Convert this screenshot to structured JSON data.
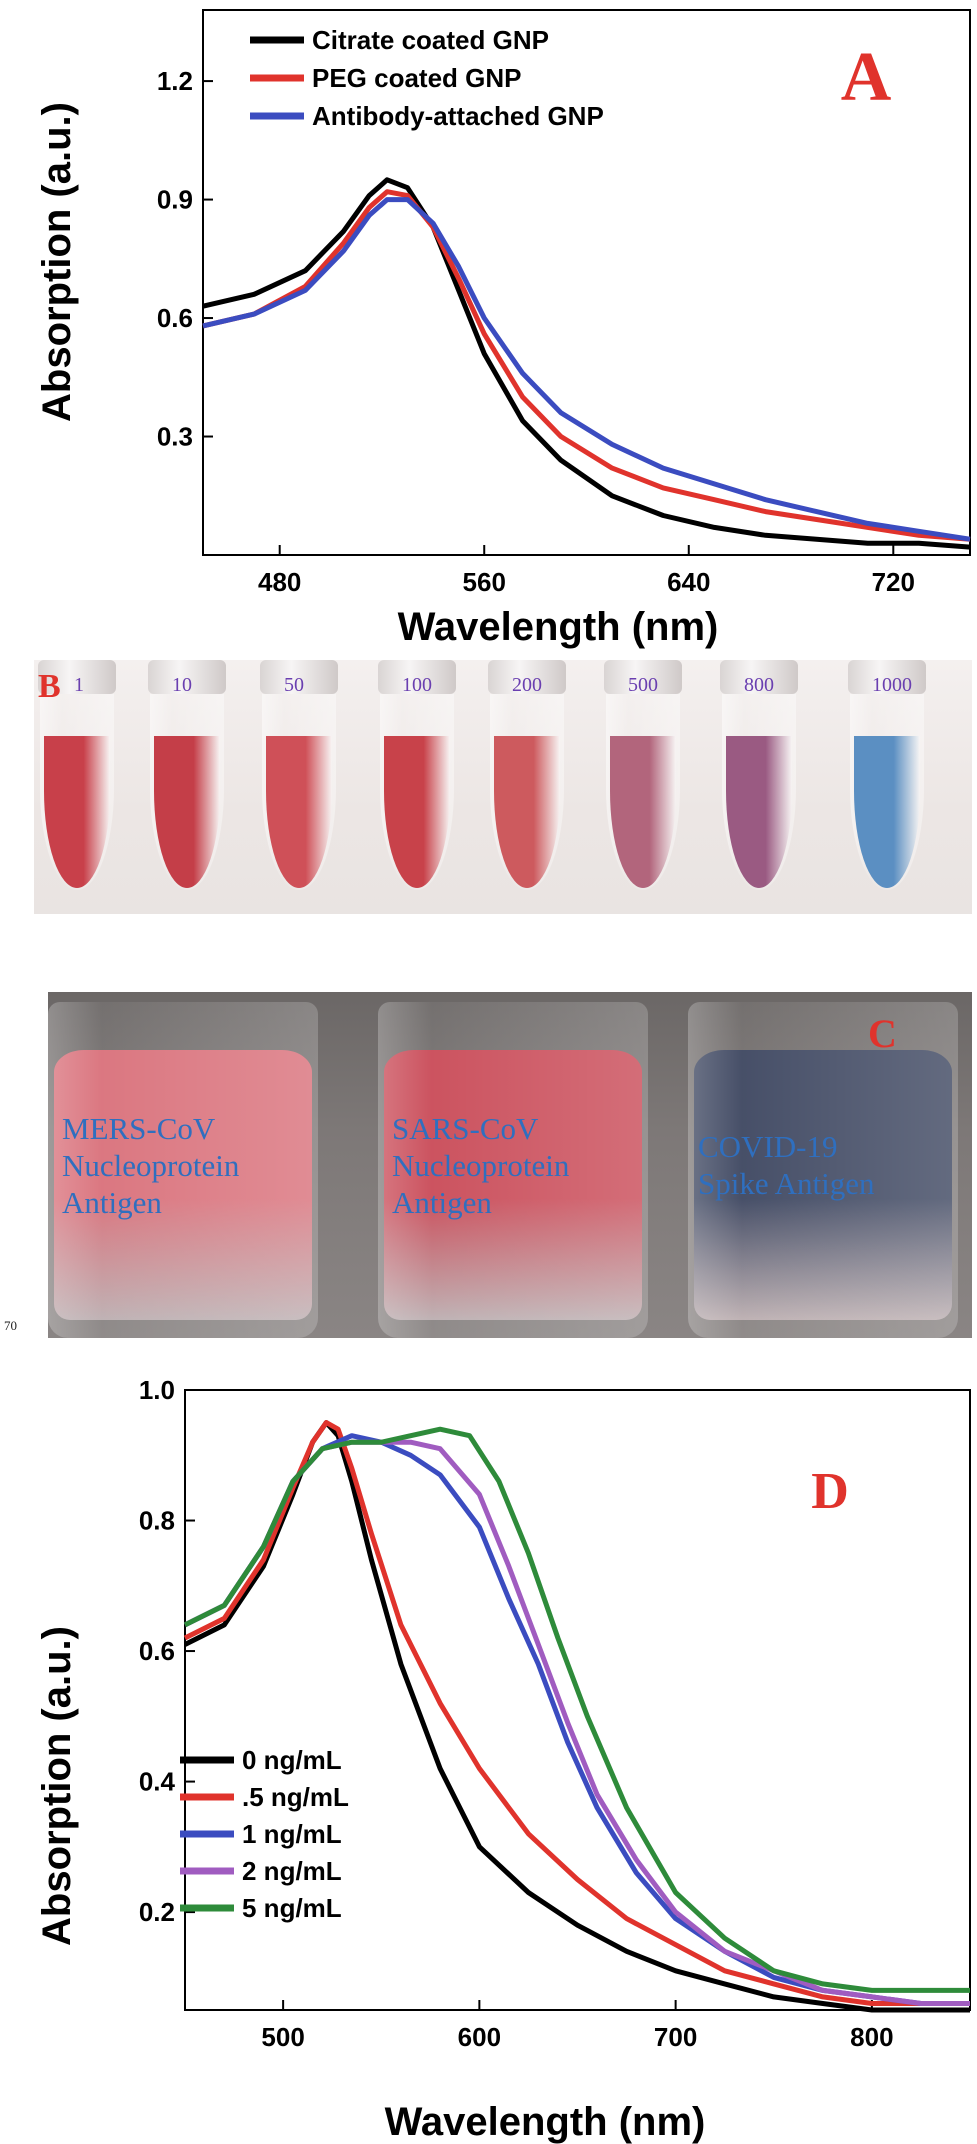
{
  "chart_data": [
    {
      "panel": "A",
      "type": "line",
      "xlabel": "Wavelength (nm)",
      "ylabel": "Absorption (a.u.)",
      "xlim": [
        450,
        750
      ],
      "ylim": [
        0.0,
        1.38
      ],
      "xticks": [
        480,
        560,
        640,
        720
      ],
      "yticks": [
        0.3,
        0.6,
        0.9,
        1.2
      ],
      "ytick_labels": [
        "0.3",
        "0.6",
        "0.9",
        "1.2"
      ],
      "legend_position": "top-left",
      "series": [
        {
          "name": "Citrate coated GNP",
          "color": "#000000",
          "x": [
            450,
            470,
            490,
            505,
            515,
            522,
            530,
            540,
            550,
            560,
            575,
            590,
            610,
            630,
            650,
            670,
            690,
            710,
            730,
            750
          ],
          "y": [
            0.63,
            0.66,
            0.72,
            0.82,
            0.91,
            0.95,
            0.93,
            0.83,
            0.67,
            0.51,
            0.34,
            0.24,
            0.15,
            0.1,
            0.07,
            0.05,
            0.04,
            0.03,
            0.03,
            0.02
          ]
        },
        {
          "name": "PEG coated GNP",
          "color": "#e0332c",
          "x": [
            450,
            470,
            490,
            505,
            515,
            522,
            530,
            540,
            550,
            560,
            575,
            590,
            610,
            630,
            650,
            670,
            690,
            710,
            730,
            750
          ],
          "y": [
            0.58,
            0.61,
            0.68,
            0.79,
            0.88,
            0.92,
            0.91,
            0.83,
            0.7,
            0.56,
            0.4,
            0.3,
            0.22,
            0.17,
            0.14,
            0.11,
            0.09,
            0.07,
            0.05,
            0.04
          ]
        },
        {
          "name": "Antibody-attached GNP",
          "color": "#3b4cc0",
          "x": [
            450,
            470,
            490,
            505,
            515,
            522,
            530,
            540,
            550,
            560,
            575,
            590,
            610,
            630,
            650,
            670,
            690,
            710,
            730,
            750
          ],
          "y": [
            0.58,
            0.61,
            0.67,
            0.77,
            0.86,
            0.9,
            0.9,
            0.84,
            0.73,
            0.6,
            0.46,
            0.36,
            0.28,
            0.22,
            0.18,
            0.14,
            0.11,
            0.08,
            0.06,
            0.04
          ]
        }
      ],
      "annotation": "A"
    },
    {
      "panel": "D",
      "type": "line",
      "xlabel": "Wavelength (nm)",
      "ylabel": "Absorption (a.u.)",
      "xlim": [
        450,
        850
      ],
      "ylim": [
        0.05,
        1.0
      ],
      "xticks": [
        500,
        600,
        700,
        800
      ],
      "yticks": [
        0.2,
        0.4,
        0.6,
        0.8,
        1.0
      ],
      "ytick_labels": [
        "0.2",
        "0.4",
        "0.6",
        "0.8",
        "1.0"
      ],
      "legend_position": "bottom-left",
      "series": [
        {
          "name": "0 ng/mL",
          "color": "#000000",
          "x": [
            450,
            470,
            490,
            505,
            515,
            522,
            528,
            535,
            545,
            560,
            580,
            600,
            625,
            650,
            675,
            700,
            725,
            750,
            775,
            800,
            825,
            850
          ],
          "y": [
            0.61,
            0.64,
            0.73,
            0.84,
            0.92,
            0.95,
            0.93,
            0.86,
            0.74,
            0.58,
            0.42,
            0.3,
            0.23,
            0.18,
            0.14,
            0.11,
            0.09,
            0.07,
            0.06,
            0.05,
            0.05,
            0.05
          ]
        },
        {
          "name": ".5 ng/mL",
          "color": "#e0332c",
          "x": [
            450,
            470,
            490,
            505,
            515,
            522,
            528,
            535,
            545,
            560,
            580,
            600,
            625,
            650,
            675,
            700,
            725,
            750,
            775,
            800,
            825,
            850
          ],
          "y": [
            0.62,
            0.65,
            0.74,
            0.85,
            0.92,
            0.95,
            0.94,
            0.88,
            0.78,
            0.64,
            0.52,
            0.42,
            0.32,
            0.25,
            0.19,
            0.15,
            0.11,
            0.09,
            0.07,
            0.06,
            0.06,
            0.06
          ]
        },
        {
          "name": "1 ng/mL",
          "color": "#3b4cc0",
          "x": [
            450,
            470,
            490,
            505,
            520,
            535,
            550,
            565,
            580,
            600,
            615,
            630,
            645,
            660,
            680,
            700,
            725,
            750,
            775,
            800,
            825,
            850
          ],
          "y": [
            0.64,
            0.67,
            0.76,
            0.86,
            0.91,
            0.93,
            0.92,
            0.9,
            0.87,
            0.79,
            0.68,
            0.58,
            0.46,
            0.36,
            0.26,
            0.19,
            0.14,
            0.1,
            0.08,
            0.07,
            0.06,
            0.06
          ]
        },
        {
          "name": "2 ng/mL",
          "color": "#a05cc0",
          "x": [
            450,
            470,
            490,
            505,
            520,
            535,
            550,
            565,
            580,
            600,
            615,
            630,
            645,
            660,
            680,
            700,
            725,
            750,
            775,
            800,
            825,
            850
          ],
          "y": [
            0.64,
            0.67,
            0.76,
            0.86,
            0.91,
            0.92,
            0.92,
            0.92,
            0.91,
            0.84,
            0.73,
            0.61,
            0.49,
            0.38,
            0.28,
            0.2,
            0.14,
            0.11,
            0.08,
            0.07,
            0.06,
            0.06
          ]
        },
        {
          "name": " 5 ng/mL",
          "color": "#2e8b3a",
          "x": [
            450,
            470,
            490,
            505,
            520,
            535,
            550,
            565,
            580,
            595,
            610,
            625,
            640,
            655,
            675,
            700,
            725,
            750,
            775,
            800,
            825,
            850
          ],
          "y": [
            0.64,
            0.67,
            0.76,
            0.86,
            0.91,
            0.92,
            0.92,
            0.93,
            0.94,
            0.93,
            0.86,
            0.75,
            0.62,
            0.5,
            0.36,
            0.23,
            0.16,
            0.11,
            0.09,
            0.08,
            0.08,
            0.08
          ]
        }
      ],
      "annotation": "D"
    }
  ],
  "panel_b": {
    "letter": "B",
    "tubes": [
      {
        "label": "1",
        "color": "#c8404a"
      },
      {
        "label": "10",
        "color": "#c43e48"
      },
      {
        "label": "50",
        "color": "#cf5058"
      },
      {
        "label": "100",
        "color": "#c8424a"
      },
      {
        "label": "200",
        "color": "#cd5a5e"
      },
      {
        "label": "500",
        "color": "#b2657c"
      },
      {
        "label": "800",
        "color": "#9a5a82"
      },
      {
        "label": "1000",
        "color": "#5b8fc2"
      }
    ]
  },
  "panel_c": {
    "letter": "C",
    "vials": [
      {
        "label": "MERS-CoV\nNucleoprotein\nAntigen",
        "color": "#d9707a"
      },
      {
        "label": "SARS-CoV\nNucleoprotein\nAntigen",
        "color": "#c94a57"
      },
      {
        "label": "COVID-19\nSpike Antigen",
        "color": "#3d4660"
      }
    ]
  },
  "page_number": "70"
}
